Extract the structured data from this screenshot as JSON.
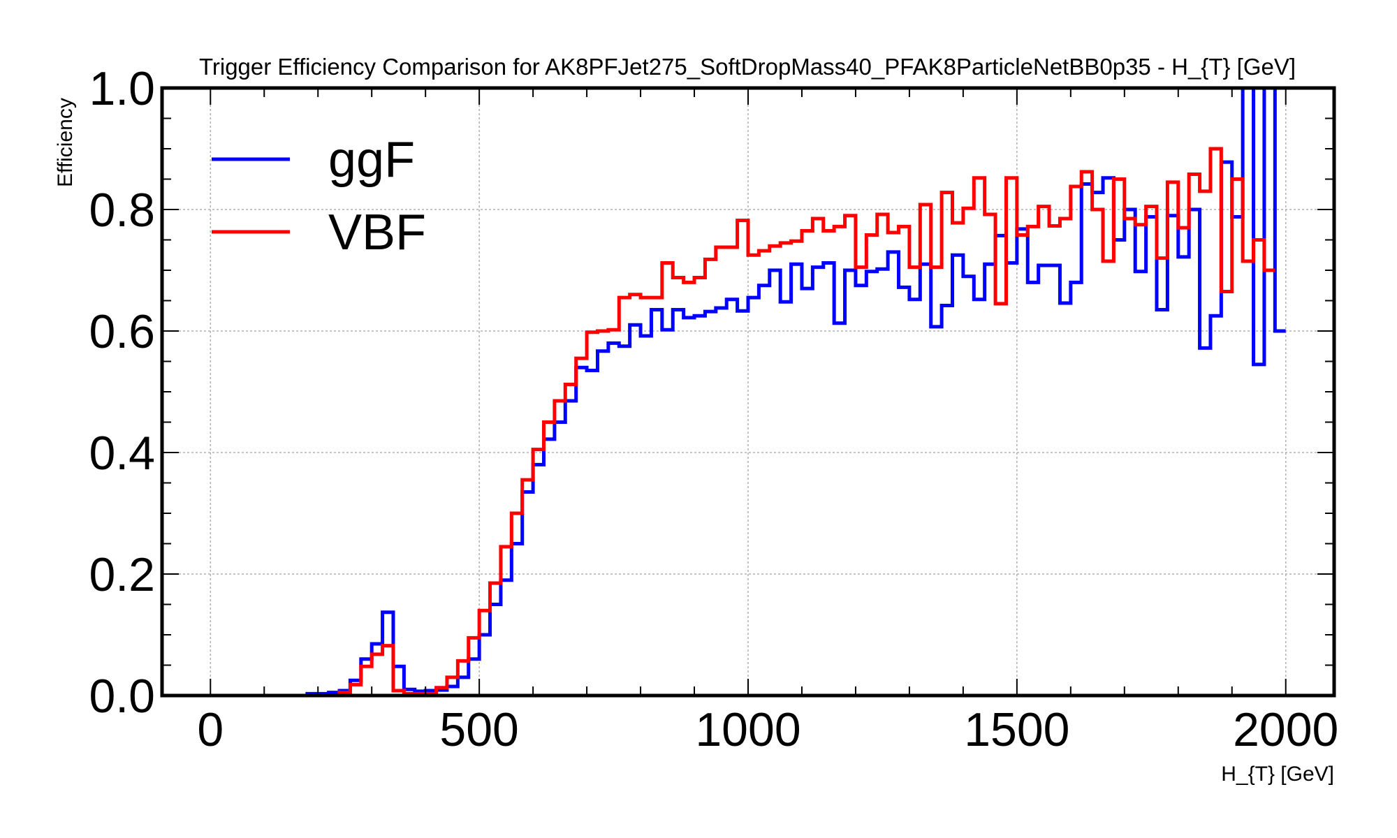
{
  "chart_data": {
    "type": "line",
    "title": "Trigger Efficiency Comparison for AK8PFJet275_SoftDropMass40_PFAK8ParticleNetBB0p35 - H_{T} [GeV]",
    "xlabel": "H_{T} [GeV]",
    "ylabel": "Efficiency",
    "xlim": [
      -90,
      2090
    ],
    "ylim": [
      0,
      1.0
    ],
    "xticks": [
      0,
      500,
      1000,
      1500,
      2000
    ],
    "xtick_labels": [
      "0",
      "500",
      "1000",
      "1500",
      "2000"
    ],
    "yticks": [
      0,
      0.2,
      0.4,
      0.6,
      0.8,
      1.0
    ],
    "ytick_labels": [
      "0.0",
      "0.2",
      "0.4",
      "0.6",
      "0.8",
      "1.0"
    ],
    "grid": true,
    "legend_position": "top-left",
    "step": "histogram",
    "bin_width": 20,
    "bin_edges_start": 0,
    "series": [
      {
        "name": "ggF",
        "color": "#0000ff",
        "values": [
          0,
          0,
          0,
          0,
          0,
          0,
          0,
          0,
          0,
          0.003,
          0.003,
          0.005,
          0.008,
          0.025,
          0.06,
          0.085,
          0.137,
          0.048,
          0.01,
          0.007,
          0.008,
          0.009,
          0.015,
          0.03,
          0.06,
          0.1,
          0.15,
          0.19,
          0.25,
          0.335,
          0.38,
          0.422,
          0.45,
          0.485,
          0.54,
          0.535,
          0.567,
          0.58,
          0.575,
          0.61,
          0.592,
          0.635,
          0.602,
          0.635,
          0.622,
          0.625,
          0.632,
          0.638,
          0.652,
          0.633,
          0.655,
          0.675,
          0.7,
          0.648,
          0.71,
          0.67,
          0.705,
          0.712,
          0.613,
          0.7,
          0.675,
          0.698,
          0.702,
          0.73,
          0.672,
          0.652,
          0.71,
          0.607,
          0.642,
          0.725,
          0.69,
          0.652,
          0.71,
          0.757,
          0.712,
          0.768,
          0.68,
          0.708,
          0.708,
          0.646,
          0.68,
          0.842,
          0.828,
          0.852,
          0.75,
          0.8,
          0.698,
          0.788,
          0.635,
          0.79,
          0.722,
          0.8,
          0.572,
          0.625,
          0.878,
          0.788,
          1.0,
          0.545,
          1.0,
          0.6
        ]
      },
      {
        "name": "VBF",
        "color": "#ff0000",
        "values": [
          0,
          0,
          0,
          0,
          0,
          0,
          0,
          0,
          0,
          0,
          0,
          0,
          0.005,
          0.018,
          0.048,
          0.068,
          0.082,
          0.008,
          0.003,
          0.003,
          0.003,
          0.013,
          0.03,
          0.057,
          0.095,
          0.14,
          0.185,
          0.245,
          0.3,
          0.355,
          0.405,
          0.45,
          0.485,
          0.512,
          0.555,
          0.598,
          0.6,
          0.602,
          0.655,
          0.66,
          0.655,
          0.655,
          0.712,
          0.688,
          0.68,
          0.688,
          0.718,
          0.738,
          0.738,
          0.782,
          0.725,
          0.732,
          0.74,
          0.745,
          0.748,
          0.765,
          0.785,
          0.765,
          0.772,
          0.79,
          0.705,
          0.758,
          0.792,
          0.762,
          0.772,
          0.705,
          0.808,
          0.705,
          0.828,
          0.778,
          0.802,
          0.852,
          0.792,
          0.645,
          0.852,
          0.758,
          0.772,
          0.805,
          0.773,
          0.785,
          0.838,
          0.862,
          0.8,
          0.715,
          0.85,
          0.785,
          0.775,
          0.805,
          0.72,
          0.845,
          0.77,
          0.858,
          0.83,
          0.9,
          0.665,
          0.85,
          0.715,
          0.75,
          0.7
        ]
      }
    ]
  }
}
